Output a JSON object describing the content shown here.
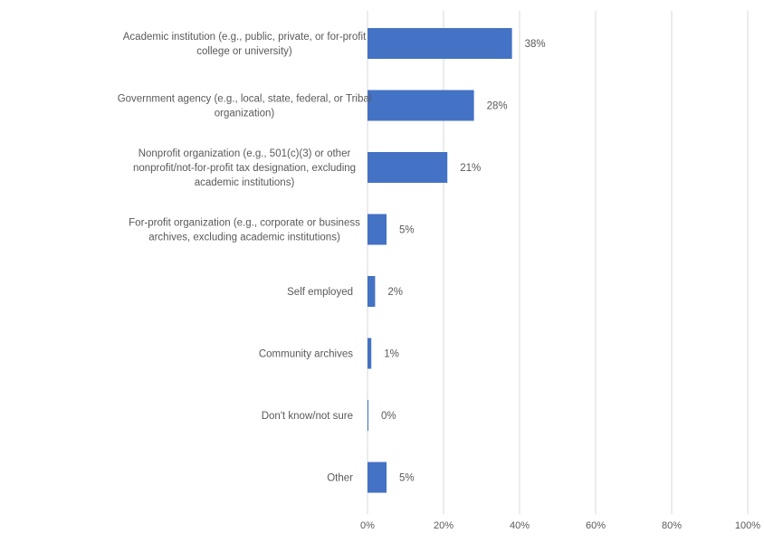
{
  "chart_data": {
    "type": "bar",
    "orientation": "horizontal",
    "title": "",
    "xlabel": "",
    "ylabel": "",
    "categories": [
      [
        "Academic institution (e.g., public, private, or for-profit",
        "college or university)"
      ],
      [
        "Government agency (e.g., local, state, federal, or Tribal",
        "organization)"
      ],
      [
        "Nonprofit organization (e.g., 501(c)(3) or other",
        "nonprofit/not-for-profit tax designation, excluding",
        "academic institutions)"
      ],
      [
        "For-profit organization (e.g., corporate or business",
        "archives, excluding academic institutions)"
      ],
      [
        "Self employed"
      ],
      [
        "Community archives"
      ],
      [
        "Don't know/not sure"
      ],
      [
        "Other"
      ]
    ],
    "values": [
      38,
      28,
      21,
      5,
      2,
      1,
      0,
      5
    ],
    "data_labels": [
      "38%",
      "28%",
      "21%",
      "5%",
      "2%",
      "1%",
      "0%",
      "5%"
    ],
    "xlim": [
      0,
      100
    ],
    "xticks": [
      0,
      20,
      40,
      60,
      80,
      100
    ],
    "xtick_labels": [
      "0%",
      "20%",
      "40%",
      "60%",
      "80%",
      "100%"
    ],
    "grid": "vertical gridlines",
    "legend": "none",
    "colors": {
      "bar": "#4472c4",
      "grid": "#d9d9d9",
      "text": "#595959"
    }
  }
}
